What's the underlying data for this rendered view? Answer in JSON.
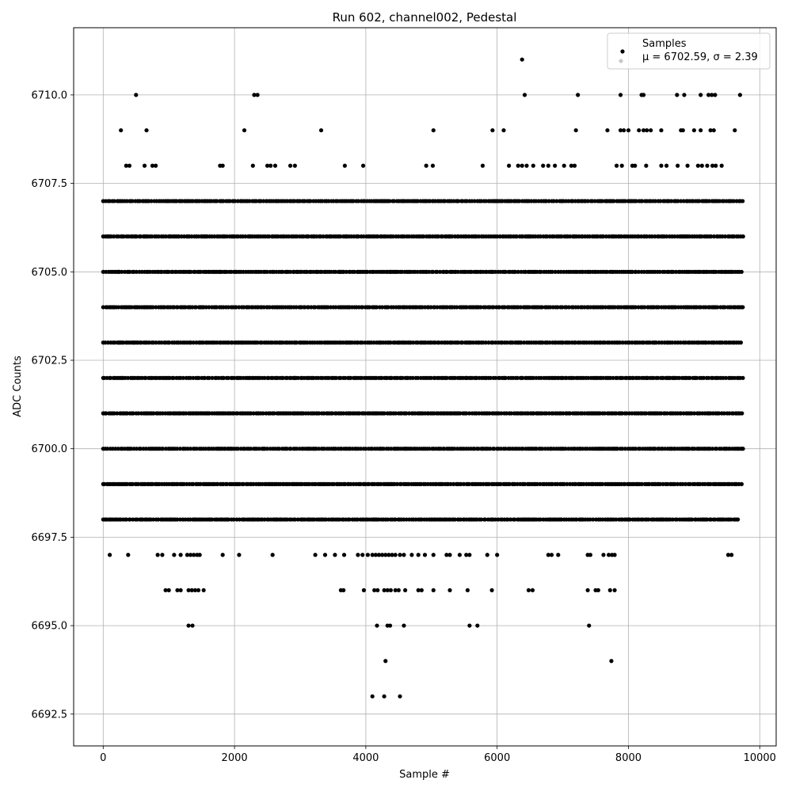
{
  "chart_data": {
    "type": "scatter",
    "title": "Run 602, channel002, Pedestal",
    "xlabel": "Sample #",
    "ylabel": "ADC Counts",
    "xlim": [
      -450,
      10250
    ],
    "ylim": [
      6691.6,
      6711.9
    ],
    "x_ticks": [
      0,
      2000,
      4000,
      6000,
      8000,
      10000
    ],
    "y_ticks": [
      6692.5,
      6695.0,
      6697.5,
      6700.0,
      6702.5,
      6705.0,
      6707.5,
      6710.0
    ],
    "x_tick_labels": [
      "0",
      "2000",
      "4000",
      "6000",
      "8000",
      "10000"
    ],
    "y_tick_labels": [
      "6692.5",
      "6695.0",
      "6697.5",
      "6700.0",
      "6702.5",
      "6705.0",
      "6707.5",
      "6710.0"
    ],
    "grid": true,
    "legend": {
      "placement": "upper right",
      "entries": [
        "Samples",
        "$\\mu$ = 6702.59, $\\sigma$ = 2.39"
      ],
      "entry_labels": [
        "Samples",
        "μ = 6702.59, σ = 2.39"
      ]
    },
    "colors": {
      "points": "#000000",
      "grid": "#b0b0b0",
      "legend_second_marker": "#c8c8c8"
    },
    "dense_levels": [
      {
        "y": 6698,
        "segments": [
          [
            0,
            9700
          ]
        ]
      },
      {
        "y": 6699,
        "segments": [
          [
            0,
            9750
          ]
        ]
      },
      {
        "y": 6700,
        "segments": [
          [
            0,
            9750
          ]
        ]
      },
      {
        "y": 6701,
        "segments": [
          [
            0,
            9750
          ]
        ]
      },
      {
        "y": 6702,
        "segments": [
          [
            0,
            9750
          ]
        ]
      },
      {
        "y": 6703,
        "segments": [
          [
            0,
            9750
          ]
        ]
      },
      {
        "y": 6704,
        "segments": [
          [
            0,
            9750
          ]
        ]
      },
      {
        "y": 6705,
        "segments": [
          [
            0,
            9750
          ]
        ]
      },
      {
        "y": 6706,
        "segments": [
          [
            0,
            9750
          ]
        ]
      },
      {
        "y": 6707,
        "segments": [
          [
            0,
            9750
          ]
        ]
      }
    ],
    "sparse_points": [
      {
        "x": 6380,
        "y": 6711
      },
      {
        "x": 500,
        "y": 6710
      },
      {
        "x": 2300,
        "y": 6710
      },
      {
        "x": 2350,
        "y": 6710
      },
      {
        "x": 6420,
        "y": 6710
      },
      {
        "x": 7230,
        "y": 6710
      },
      {
        "x": 7880,
        "y": 6710
      },
      {
        "x": 8200,
        "y": 6710
      },
      {
        "x": 8230,
        "y": 6710
      },
      {
        "x": 8740,
        "y": 6710
      },
      {
        "x": 8850,
        "y": 6710
      },
      {
        "x": 9100,
        "y": 6710
      },
      {
        "x": 9220,
        "y": 6710
      },
      {
        "x": 9270,
        "y": 6710
      },
      {
        "x": 9320,
        "y": 6710
      },
      {
        "x": 9700,
        "y": 6710
      },
      {
        "x": 270,
        "y": 6709
      },
      {
        "x": 660,
        "y": 6709
      },
      {
        "x": 2150,
        "y": 6709
      },
      {
        "x": 3320,
        "y": 6709
      },
      {
        "x": 5030,
        "y": 6709
      },
      {
        "x": 5930,
        "y": 6709
      },
      {
        "x": 6100,
        "y": 6709
      },
      {
        "x": 7200,
        "y": 6709
      },
      {
        "x": 7680,
        "y": 6709
      },
      {
        "x": 7880,
        "y": 6709
      },
      {
        "x": 7930,
        "y": 6709
      },
      {
        "x": 8000,
        "y": 6709
      },
      {
        "x": 8160,
        "y": 6709
      },
      {
        "x": 8230,
        "y": 6709
      },
      {
        "x": 8280,
        "y": 6709
      },
      {
        "x": 8340,
        "y": 6709
      },
      {
        "x": 8500,
        "y": 6709
      },
      {
        "x": 8800,
        "y": 6709
      },
      {
        "x": 8830,
        "y": 6709
      },
      {
        "x": 9000,
        "y": 6709
      },
      {
        "x": 9100,
        "y": 6709
      },
      {
        "x": 9250,
        "y": 6709
      },
      {
        "x": 9300,
        "y": 6709
      },
      {
        "x": 9620,
        "y": 6709
      },
      {
        "x": 350,
        "y": 6708
      },
      {
        "x": 400,
        "y": 6708
      },
      {
        "x": 630,
        "y": 6708
      },
      {
        "x": 750,
        "y": 6708
      },
      {
        "x": 800,
        "y": 6708
      },
      {
        "x": 1780,
        "y": 6708
      },
      {
        "x": 1820,
        "y": 6708
      },
      {
        "x": 2280,
        "y": 6708
      },
      {
        "x": 2500,
        "y": 6708
      },
      {
        "x": 2550,
        "y": 6708
      },
      {
        "x": 2620,
        "y": 6708
      },
      {
        "x": 2850,
        "y": 6708
      },
      {
        "x": 2920,
        "y": 6708
      },
      {
        "x": 3680,
        "y": 6708
      },
      {
        "x": 3960,
        "y": 6708
      },
      {
        "x": 4920,
        "y": 6708
      },
      {
        "x": 5020,
        "y": 6708
      },
      {
        "x": 5780,
        "y": 6708
      },
      {
        "x": 6180,
        "y": 6708
      },
      {
        "x": 6320,
        "y": 6708
      },
      {
        "x": 6380,
        "y": 6708
      },
      {
        "x": 6450,
        "y": 6708
      },
      {
        "x": 6550,
        "y": 6708
      },
      {
        "x": 6700,
        "y": 6708
      },
      {
        "x": 6780,
        "y": 6708
      },
      {
        "x": 6880,
        "y": 6708
      },
      {
        "x": 7020,
        "y": 6708
      },
      {
        "x": 7130,
        "y": 6708
      },
      {
        "x": 7180,
        "y": 6708
      },
      {
        "x": 7820,
        "y": 6708
      },
      {
        "x": 7900,
        "y": 6708
      },
      {
        "x": 8060,
        "y": 6708
      },
      {
        "x": 8100,
        "y": 6708
      },
      {
        "x": 8270,
        "y": 6708
      },
      {
        "x": 8500,
        "y": 6708
      },
      {
        "x": 8580,
        "y": 6708
      },
      {
        "x": 8750,
        "y": 6708
      },
      {
        "x": 8900,
        "y": 6708
      },
      {
        "x": 9060,
        "y": 6708
      },
      {
        "x": 9120,
        "y": 6708
      },
      {
        "x": 9200,
        "y": 6708
      },
      {
        "x": 9280,
        "y": 6708
      },
      {
        "x": 9330,
        "y": 6708
      },
      {
        "x": 9420,
        "y": 6708
      },
      {
        "x": 100,
        "y": 6697
      },
      {
        "x": 380,
        "y": 6697
      },
      {
        "x": 830,
        "y": 6697
      },
      {
        "x": 900,
        "y": 6697
      },
      {
        "x": 1080,
        "y": 6697
      },
      {
        "x": 1180,
        "y": 6697
      },
      {
        "x": 1280,
        "y": 6697
      },
      {
        "x": 1330,
        "y": 6697
      },
      {
        "x": 1380,
        "y": 6697
      },
      {
        "x": 1430,
        "y": 6697
      },
      {
        "x": 1470,
        "y": 6697
      },
      {
        "x": 1820,
        "y": 6697
      },
      {
        "x": 2070,
        "y": 6697
      },
      {
        "x": 2580,
        "y": 6697
      },
      {
        "x": 3230,
        "y": 6697
      },
      {
        "x": 3380,
        "y": 6697
      },
      {
        "x": 3530,
        "y": 6697
      },
      {
        "x": 3670,
        "y": 6697
      },
      {
        "x": 3880,
        "y": 6697
      },
      {
        "x": 3950,
        "y": 6697
      },
      {
        "x": 4030,
        "y": 6697
      },
      {
        "x": 4100,
        "y": 6697
      },
      {
        "x": 4150,
        "y": 6697
      },
      {
        "x": 4200,
        "y": 6697
      },
      {
        "x": 4250,
        "y": 6697
      },
      {
        "x": 4300,
        "y": 6697
      },
      {
        "x": 4350,
        "y": 6697
      },
      {
        "x": 4400,
        "y": 6697
      },
      {
        "x": 4450,
        "y": 6697
      },
      {
        "x": 4520,
        "y": 6697
      },
      {
        "x": 4580,
        "y": 6697
      },
      {
        "x": 4700,
        "y": 6697
      },
      {
        "x": 4800,
        "y": 6697
      },
      {
        "x": 4900,
        "y": 6697
      },
      {
        "x": 5030,
        "y": 6697
      },
      {
        "x": 5230,
        "y": 6697
      },
      {
        "x": 5280,
        "y": 6697
      },
      {
        "x": 5430,
        "y": 6697
      },
      {
        "x": 5530,
        "y": 6697
      },
      {
        "x": 5580,
        "y": 6697
      },
      {
        "x": 5850,
        "y": 6697
      },
      {
        "x": 6000,
        "y": 6697
      },
      {
        "x": 6780,
        "y": 6697
      },
      {
        "x": 6830,
        "y": 6697
      },
      {
        "x": 6930,
        "y": 6697
      },
      {
        "x": 7380,
        "y": 6697
      },
      {
        "x": 7420,
        "y": 6697
      },
      {
        "x": 7620,
        "y": 6697
      },
      {
        "x": 7700,
        "y": 6697
      },
      {
        "x": 7750,
        "y": 6697
      },
      {
        "x": 7790,
        "y": 6697
      },
      {
        "x": 9520,
        "y": 6697
      },
      {
        "x": 9570,
        "y": 6697
      },
      {
        "x": 950,
        "y": 6696
      },
      {
        "x": 1000,
        "y": 6696
      },
      {
        "x": 1130,
        "y": 6696
      },
      {
        "x": 1180,
        "y": 6696
      },
      {
        "x": 1300,
        "y": 6696
      },
      {
        "x": 1350,
        "y": 6696
      },
      {
        "x": 1400,
        "y": 6696
      },
      {
        "x": 1450,
        "y": 6696
      },
      {
        "x": 1530,
        "y": 6696
      },
      {
        "x": 3620,
        "y": 6696
      },
      {
        "x": 3660,
        "y": 6696
      },
      {
        "x": 3970,
        "y": 6696
      },
      {
        "x": 4130,
        "y": 6696
      },
      {
        "x": 4180,
        "y": 6696
      },
      {
        "x": 4280,
        "y": 6696
      },
      {
        "x": 4330,
        "y": 6696
      },
      {
        "x": 4380,
        "y": 6696
      },
      {
        "x": 4450,
        "y": 6696
      },
      {
        "x": 4500,
        "y": 6696
      },
      {
        "x": 4600,
        "y": 6696
      },
      {
        "x": 4800,
        "y": 6696
      },
      {
        "x": 4850,
        "y": 6696
      },
      {
        "x": 5030,
        "y": 6696
      },
      {
        "x": 5280,
        "y": 6696
      },
      {
        "x": 5550,
        "y": 6696
      },
      {
        "x": 5920,
        "y": 6696
      },
      {
        "x": 6480,
        "y": 6696
      },
      {
        "x": 6540,
        "y": 6696
      },
      {
        "x": 7380,
        "y": 6696
      },
      {
        "x": 7500,
        "y": 6696
      },
      {
        "x": 7540,
        "y": 6696
      },
      {
        "x": 7720,
        "y": 6696
      },
      {
        "x": 7790,
        "y": 6696
      },
      {
        "x": 1300,
        "y": 6695
      },
      {
        "x": 1360,
        "y": 6695
      },
      {
        "x": 4170,
        "y": 6695
      },
      {
        "x": 4330,
        "y": 6695
      },
      {
        "x": 4370,
        "y": 6695
      },
      {
        "x": 4580,
        "y": 6695
      },
      {
        "x": 5580,
        "y": 6695
      },
      {
        "x": 5700,
        "y": 6695
      },
      {
        "x": 7400,
        "y": 6695
      },
      {
        "x": 4300,
        "y": 6694
      },
      {
        "x": 7740,
        "y": 6694
      },
      {
        "x": 4100,
        "y": 6693
      },
      {
        "x": 4280,
        "y": 6693
      },
      {
        "x": 4520,
        "y": 6693
      }
    ]
  }
}
